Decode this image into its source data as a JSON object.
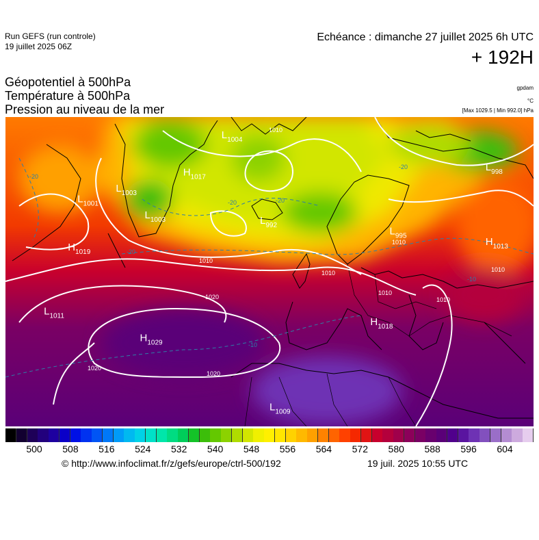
{
  "header": {
    "run_name": "Run GEFS (run controle)",
    "run_date": "19 juillet 2025 06Z",
    "valid_time": "Echéance : dimanche 27 juillet 2025 6h UTC",
    "lead_time": "+ 192H"
  },
  "layers": [
    "Géopotentiel à 500hPa",
    "Température à 500hPa",
    "Pression au niveau de la mer"
  ],
  "units": {
    "geopotential": "gpdam",
    "temperature": "°C",
    "pressure_extremes": "[Max 1029.5 | Min 992.0] hPa"
  },
  "pressure_centers": [
    {
      "type": "L",
      "value": "1001",
      "lon": -40,
      "lat": 66
    },
    {
      "type": "L",
      "value": "1003",
      "lon": -32,
      "lat": 68
    },
    {
      "type": "H",
      "value": "1017",
      "lon": -18,
      "lat": 71
    },
    {
      "type": "L",
      "value": "1003",
      "lon": -26,
      "lat": 63
    },
    {
      "type": "L",
      "value": "992",
      "lon": -2,
      "lat": 62
    },
    {
      "type": "L",
      "value": "995",
      "lon": 25,
      "lat": 60
    },
    {
      "type": "L",
      "value": "998",
      "lon": 45,
      "lat": 72
    },
    {
      "type": "L",
      "value": "1004",
      "lon": -10,
      "lat": 78
    },
    {
      "type": "H",
      "value": "1019",
      "lon": -42,
      "lat": 57
    },
    {
      "type": "H",
      "value": "1013",
      "lon": 45,
      "lat": 58
    },
    {
      "type": "L",
      "value": "1011",
      "lon": -47,
      "lat": 45
    },
    {
      "type": "H",
      "value": "1029",
      "lon": -27,
      "lat": 40
    },
    {
      "type": "H",
      "value": "1018",
      "lon": 21,
      "lat": 43
    },
    {
      "type": "L",
      "value": "1009",
      "lon": 0,
      "lat": 27
    }
  ],
  "isobar_labels": [
    "1010",
    "1010",
    "1010",
    "1010",
    "1010",
    "1010",
    "1010",
    "1020",
    "1020",
    "1020"
  ],
  "temperature_labels": [
    "-20",
    "-20",
    "-20",
    "-20",
    "-20",
    "-10",
    "-10"
  ],
  "colorbar": {
    "steps": [
      "#000000",
      "#120030",
      "#1e0058",
      "#22007d",
      "#1e00a0",
      "#0a00c8",
      "#0010e6",
      "#0032f0",
      "#0055f5",
      "#0078f8",
      "#009bf8",
      "#00b9f0",
      "#00d2e6",
      "#00e1c8",
      "#00e6aa",
      "#00dc82",
      "#00cd5a",
      "#14c328",
      "#3cbe0a",
      "#64c800",
      "#8cd200",
      "#afdc00",
      "#d2e600",
      "#f0f000",
      "#fff000",
      "#ffe600",
      "#ffd200",
      "#ffb900",
      "#ffa000",
      "#ff8200",
      "#ff6400",
      "#ff4100",
      "#f52800",
      "#e11414",
      "#c8002d",
      "#b4003c",
      "#a0004b",
      "#8c005a",
      "#7a0064",
      "#68006e",
      "#5a0078",
      "#50008c",
      "#5a14a0",
      "#6e32b4",
      "#8250be",
      "#9a6ec8",
      "#b48cd2",
      "#cdaade",
      "#e6cdee"
    ],
    "ticks": [
      "500",
      "508",
      "516",
      "524",
      "532",
      "540",
      "548",
      "556",
      "564",
      "572",
      "580",
      "588",
      "596",
      "604"
    ]
  },
  "footer": {
    "credit": "© http://www.infoclimat.fr/z/gefs/europe/ctrl-500/192",
    "issued": "19 juil. 2025 10:55 UTC"
  }
}
